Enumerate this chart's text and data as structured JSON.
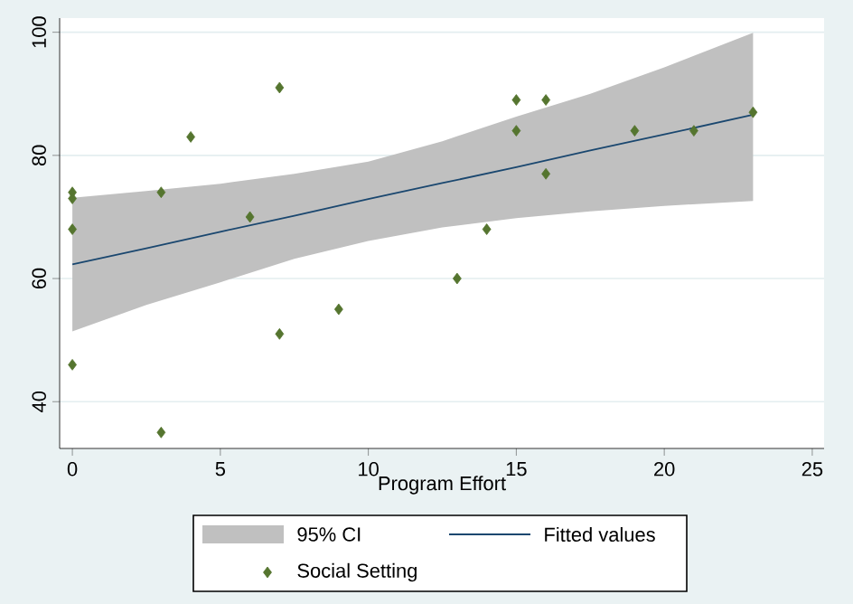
{
  "chart_data": {
    "type": "scatter",
    "xlabel": "Program Effort",
    "xlim": [
      -0.43,
      25.4
    ],
    "ylim": [
      32.4,
      102.3
    ],
    "xticks": [
      0,
      5,
      10,
      15,
      20,
      25
    ],
    "yticks": [
      40,
      60,
      80,
      100
    ],
    "grid": "y",
    "legend": "bottom",
    "annotations": [
      "95% CI"
    ],
    "series": [
      {
        "name": "Fitted values",
        "type": "line",
        "color": "#1a476f",
        "line_style": "solid",
        "x": [
          0,
          2.5,
          5,
          7.5,
          10,
          12.5,
          15,
          17.5,
          20,
          23
        ],
        "values": [
          62.3,
          64.9,
          67.6,
          70.2,
          72.9,
          75.5,
          78.1,
          80.8,
          83.4,
          86.6
        ],
        "lower": [
          51.4,
          55.7,
          59.4,
          63.2,
          66.1,
          68.3,
          69.8,
          70.9,
          71.8,
          72.6
        ],
        "upper": [
          73.1,
          74.2,
          75.4,
          77.0,
          79.0,
          82.3,
          86.3,
          90.0,
          94.3,
          99.9
        ]
      },
      {
        "name": "Social Setting",
        "type": "scatter",
        "color": "#55752f",
        "marker": "diamond",
        "x": [
          0,
          0,
          16,
          16,
          21,
          15,
          14,
          6,
          13,
          9,
          3,
          7,
          23,
          4,
          0,
          19,
          3,
          0,
          15,
          7
        ],
        "values": [
          46,
          74,
          89,
          77,
          84,
          89,
          68,
          70,
          60,
          55,
          35,
          51,
          87,
          83,
          68,
          84,
          74,
          73,
          84,
          91
        ]
      }
    ]
  }
}
